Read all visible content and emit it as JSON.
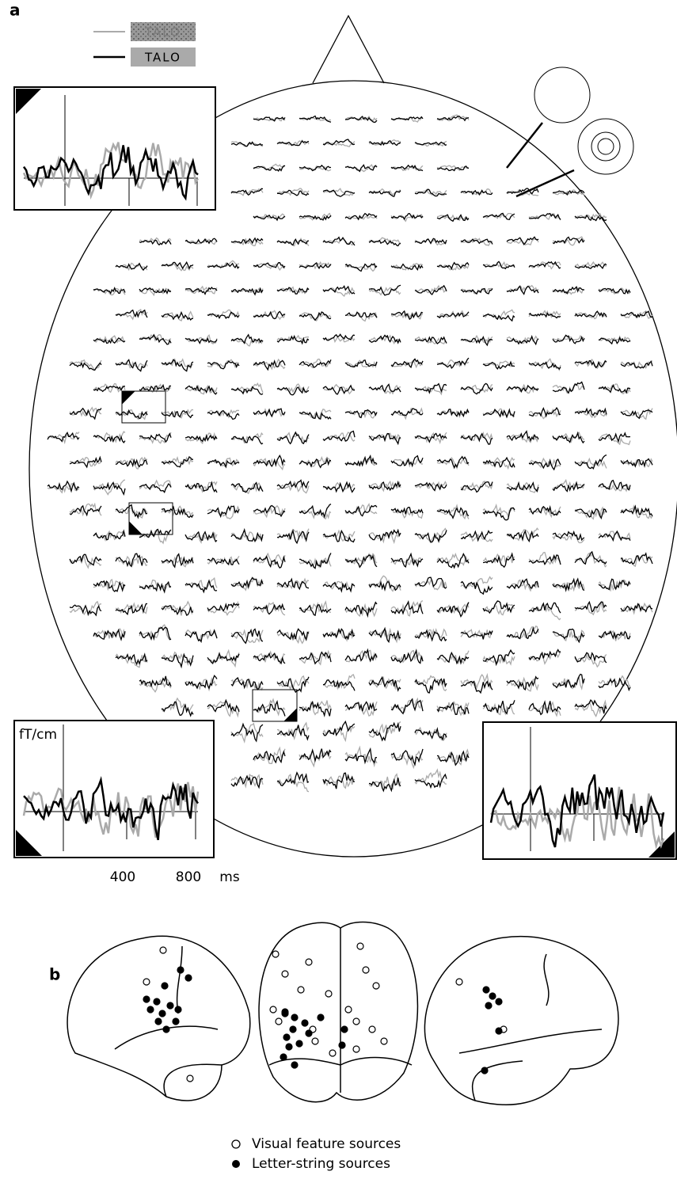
{
  "panel_a": {
    "label": "a",
    "legend": [
      "TALO",
      "TALO"
    ],
    "inset_y_unit": "fT/cm",
    "x_ticks": [
      "400",
      "800"
    ],
    "x_unit": "ms"
  },
  "panel_b": {
    "label": "b",
    "legend": [
      "Visual feature sources",
      "Letter-string sources"
    ]
  }
}
